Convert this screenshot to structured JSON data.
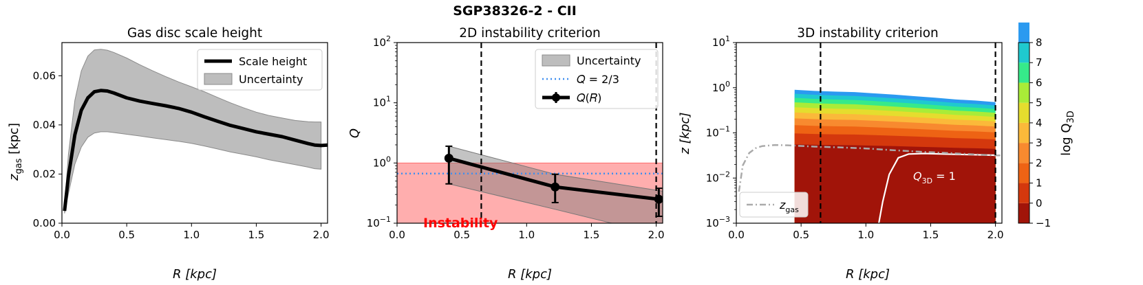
{
  "title": "SGP38326-2 - CII",
  "chart_data": [
    {
      "type": "area",
      "title": "Gas disc scale height",
      "xlabel": "R [kpc]",
      "ylabel_main": "z",
      "ylabel_sub": "gas",
      "ylabel_unit": "[kpc]",
      "xlim": [
        0.0,
        2.05
      ],
      "ylim": [
        0.0,
        0.0735
      ],
      "xticks": [
        0.0,
        0.5,
        1.0,
        1.5,
        2.0
      ],
      "xtick_labels": [
        "0.0",
        "0.5",
        "1.0",
        "1.5",
        "2.0"
      ],
      "yticks": [
        0.0,
        0.02,
        0.04,
        0.06
      ],
      "ytick_labels": [
        "0.00",
        "0.02",
        "0.04",
        "0.06"
      ],
      "series": [
        {
          "name": "Scale height",
          "x": [
            0.02,
            0.05,
            0.1,
            0.15,
            0.2,
            0.25,
            0.3,
            0.35,
            0.4,
            0.5,
            0.6,
            0.7,
            0.8,
            0.9,
            1.0,
            1.1,
            1.2,
            1.3,
            1.4,
            1.5,
            1.6,
            1.7,
            1.8,
            1.9,
            1.95,
            2.0,
            2.05
          ],
          "values": [
            0.005,
            0.019,
            0.036,
            0.046,
            0.051,
            0.0535,
            0.054,
            0.0538,
            0.053,
            0.051,
            0.0497,
            0.0487,
            0.0478,
            0.0467,
            0.0452,
            0.0433,
            0.0415,
            0.0398,
            0.0385,
            0.0372,
            0.0362,
            0.0352,
            0.0338,
            0.0324,
            0.0318,
            0.0316,
            0.0318
          ]
        },
        {
          "name": "Uncertainty",
          "x": [
            0.02,
            0.05,
            0.1,
            0.15,
            0.2,
            0.25,
            0.3,
            0.35,
            0.4,
            0.5,
            0.6,
            0.7,
            0.8,
            0.9,
            1.0,
            1.1,
            1.2,
            1.3,
            1.4,
            1.5,
            1.6,
            1.7,
            1.8,
            1.9,
            1.95,
            2.0
          ],
          "upper": [
            0.007,
            0.028,
            0.05,
            0.062,
            0.068,
            0.0705,
            0.0708,
            0.0704,
            0.0695,
            0.0672,
            0.0645,
            0.062,
            0.0597,
            0.0575,
            0.0555,
            0.0535,
            0.0512,
            0.049,
            0.047,
            0.0452,
            0.0438,
            0.0428,
            0.0418,
            0.0413,
            0.0412,
            0.0412
          ],
          "lower": [
            0.004,
            0.012,
            0.024,
            0.031,
            0.035,
            0.0367,
            0.0372,
            0.0372,
            0.0369,
            0.0362,
            0.0355,
            0.0347,
            0.034,
            0.0333,
            0.0325,
            0.0314,
            0.0302,
            0.029,
            0.028,
            0.027,
            0.0258,
            0.0248,
            0.0238,
            0.0228,
            0.0222,
            0.022
          ]
        }
      ],
      "legend": {
        "position": "top-right",
        "entries": [
          "Scale height",
          "Uncertainty"
        ]
      }
    },
    {
      "type": "line",
      "title": "2D instability criterion",
      "xlabel": "R [kpc]",
      "ylabel": "Q",
      "yscale": "log",
      "xlim": [
        0.0,
        2.05
      ],
      "ylim": [
        0.1,
        100
      ],
      "xticks": [
        0.0,
        0.5,
        1.0,
        1.5,
        2.0
      ],
      "xtick_labels": [
        "0.0",
        "0.5",
        "1.0",
        "1.5",
        "2.0"
      ],
      "yticks": [
        0.1,
        1,
        10,
        100
      ],
      "ytick_labels": [
        "10",
        "10",
        "10",
        "10"
      ],
      "ytick_exponents": [
        "−1",
        "0",
        "1",
        "2"
      ],
      "series": [
        {
          "name": "Q(R)",
          "x": [
            0.4,
            1.22,
            2.02
          ],
          "values": [
            1.2,
            0.4,
            0.25
          ],
          "yerr_low": [
            0.45,
            0.22,
            0.13
          ],
          "yerr_high": [
            1.9,
            0.65,
            0.38
          ]
        },
        {
          "name": "Uncertainty",
          "x": [
            0.4,
            1.22,
            2.05
          ],
          "upper": [
            1.9,
            0.65,
            0.34
          ],
          "lower": [
            0.45,
            0.17,
            0.062
          ]
        },
        {
          "name": "Q = 2/3",
          "value": 0.667
        }
      ],
      "vlines": [
        0.65,
        2.0
      ],
      "instability_region": [
        0.1,
        1.0
      ],
      "annotation": "Instability",
      "legend": {
        "position": "top-right",
        "entries": [
          "Uncertainty",
          "Q = 2/3",
          "Q(R)"
        ]
      },
      "legend_q_line_text": "𝑄 = 2/3",
      "legend_qr_text": "𝑄(𝑅)"
    },
    {
      "type": "heatmap",
      "title": "3D instability criterion",
      "xlabel": "R [kpc]",
      "ylabel": "z [kpc]",
      "yscale": "log",
      "xlim": [
        0.0,
        2.05
      ],
      "ylim": [
        0.001,
        10
      ],
      "xticks": [
        0.0,
        0.5,
        1.0,
        1.5,
        2.0
      ],
      "xtick_labels": [
        "0.0",
        "0.5",
        "1.0",
        "1.5",
        "2.0"
      ],
      "yticks": [
        0.001,
        0.01,
        0.1,
        1,
        10
      ],
      "ytick_labels": [
        "10",
        "10",
        "10",
        "10",
        "10"
      ],
      "ytick_exponents": [
        "−3",
        "−2",
        "−1",
        "0",
        "1"
      ],
      "vlines": [
        0.65,
        2.0
      ],
      "filled_region_x": [
        0.45,
        2.0
      ],
      "contour_top_z": [
        0.9,
        0.85,
        0.82,
        0.8,
        0.75,
        0.7,
        0.65,
        0.6,
        0.55,
        0.52,
        0.48
      ],
      "bands": [
        {
          "level": -1,
          "color": "#a11409"
        },
        {
          "level": 0,
          "color": "#d4380d"
        },
        {
          "level": 1,
          "color": "#ee6314"
        },
        {
          "level": 2,
          "color": "#f88a2f"
        },
        {
          "level": 3,
          "color": "#fbb93a"
        },
        {
          "level": 4,
          "color": "#e5dd2e"
        },
        {
          "level": 5,
          "color": "#a9ec38"
        },
        {
          "level": 6,
          "color": "#36ea8a"
        },
        {
          "level": 7,
          "color": "#1fc9cf"
        },
        {
          "level": 8,
          "color": "#2b9af0"
        }
      ],
      "q3d_one_contour": {
        "x": [
          1.1,
          1.13,
          1.18,
          1.25,
          1.33,
          1.45,
          1.6,
          1.8,
          2.0
        ],
        "z": [
          0.001,
          0.003,
          0.012,
          0.028,
          0.034,
          0.035,
          0.034,
          0.033,
          0.032
        ]
      },
      "q3d_label": "Q",
      "q3d_label_sub": "3D",
      "q3d_label_rest": " = 1",
      "zgas_curve": {
        "x": [
          0.02,
          0.05,
          0.1,
          0.15,
          0.2,
          0.3,
          0.4,
          0.6,
          0.8,
          1.0,
          1.2,
          1.4,
          1.6,
          1.8,
          2.0,
          2.05
        ],
        "z": [
          0.005,
          0.019,
          0.036,
          0.046,
          0.051,
          0.054,
          0.053,
          0.0497,
          0.0478,
          0.0452,
          0.0415,
          0.0385,
          0.0362,
          0.0338,
          0.0316,
          0.0318
        ]
      },
      "legend": {
        "position": "bottom-left",
        "entries": [
          "z_gas"
        ]
      },
      "legend_zgas_main": "z",
      "legend_zgas_sub": "gas",
      "colorbar": {
        "label_main": "log Q",
        "label_sub": "3D",
        "ticks": [
          -1,
          0,
          1,
          2,
          3,
          4,
          5,
          6,
          7,
          8
        ],
        "tick_labels": [
          "−1",
          "0",
          "1",
          "2",
          "3",
          "4",
          "5",
          "6",
          "7",
          "8"
        ]
      }
    }
  ]
}
